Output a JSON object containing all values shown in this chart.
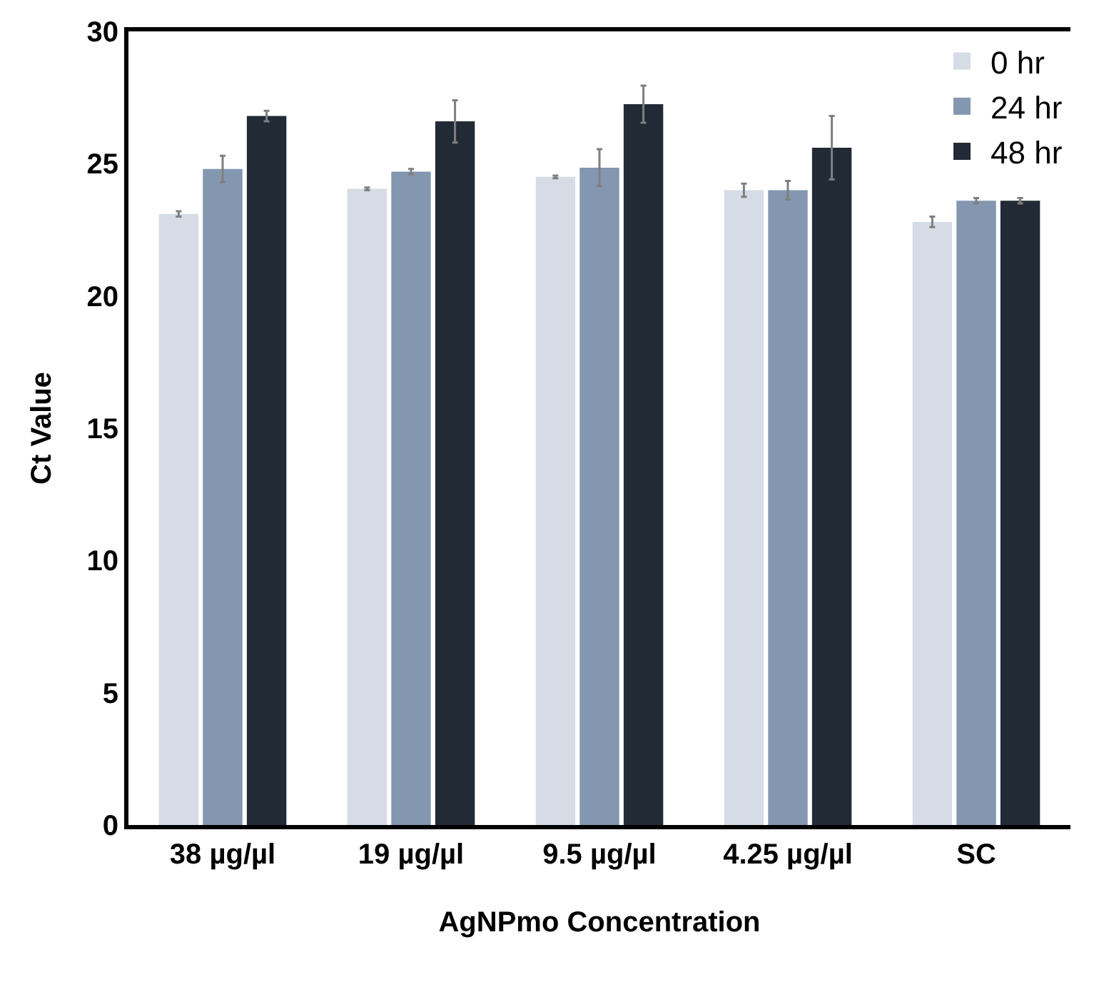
{
  "chart_data": {
    "type": "bar",
    "xlabel": "AgNPmo Concentration",
    "ylabel": "Ct Value",
    "categories": [
      "38 µg/µl",
      "19 µg/µl",
      "9.5 µg/µl",
      "4.25 µg/µl",
      "SC"
    ],
    "series": [
      {
        "name": "0 hr",
        "color": "#d6dce5",
        "values": [
          23.1,
          24.05,
          24.5,
          24.0,
          22.8
        ],
        "errors": [
          0.1,
          0.05,
          0.05,
          0.25,
          0.2
        ]
      },
      {
        "name": "24 hr",
        "color": "#8497b0",
        "values": [
          24.8,
          24.7,
          24.85,
          24.0,
          23.6
        ],
        "errors": [
          0.5,
          0.1,
          0.7,
          0.35,
          0.1
        ]
      },
      {
        "name": "48 hr",
        "color": "#222a35",
        "values": [
          26.8,
          26.6,
          27.25,
          25.6,
          23.6
        ],
        "errors": [
          0.2,
          0.8,
          0.7,
          1.2,
          0.1
        ]
      }
    ],
    "ylim": [
      0,
      30
    ],
    "yticks": [
      0,
      5,
      10,
      15,
      20,
      25,
      30
    ],
    "grid": false,
    "legend": "top right"
  }
}
